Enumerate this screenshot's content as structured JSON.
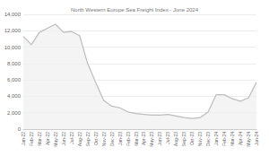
{
  "chart_data": {
    "type": "line",
    "title": "North Western Europe Sea Freight Index - June 2024",
    "categories": [
      "Jan-22",
      "Feb-22",
      "Mar-22",
      "Apr-22",
      "May-22",
      "Jun-22",
      "Jul-22",
      "Aug-22",
      "Sep-22",
      "Oct-22",
      "Nov-22",
      "Dec-22",
      "Jan-23",
      "Feb-23",
      "Mar-23",
      "Apr-23",
      "May-23",
      "Jun-23",
      "Jul-23",
      "Aug-23",
      "Sep-23",
      "Oct-23",
      "Nov-23",
      "Dec-23",
      "Jan-24",
      "Feb-24",
      "Mar-24",
      "Apr-24",
      "May-24",
      "Jun-24"
    ],
    "values": [
      11300,
      10300,
      11800,
      12300,
      12800,
      11800,
      11900,
      11400,
      8000,
      5700,
      3500,
      2800,
      2600,
      2100,
      1900,
      1800,
      1700,
      1700,
      1800,
      1600,
      1400,
      1300,
      1400,
      2100,
      4200,
      4200,
      3700,
      3400,
      3800,
      5700
    ],
    "color": "#bdbdbd",
    "ylim": [
      0,
      14000
    ],
    "yticks": [
      0,
      2000,
      4000,
      6000,
      8000,
      10000,
      12000,
      14000
    ],
    "grid": true
  }
}
